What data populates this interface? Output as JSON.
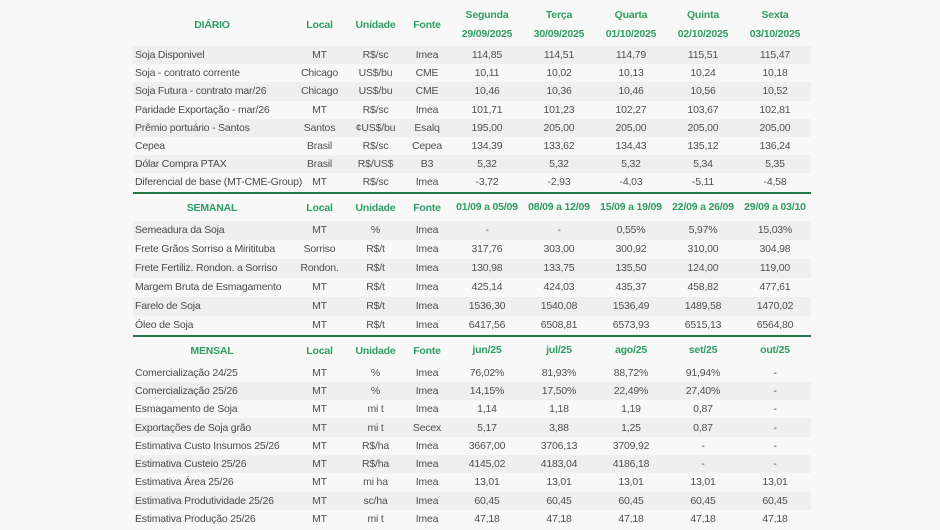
{
  "colors": {
    "header_green": "#2e9e63",
    "divider_green": "#26774a",
    "stripe_gray": "#efefef",
    "background": "#f8f8f8",
    "body_text": "#4f4f4f"
  },
  "sections": [
    {
      "title": "DIÁRIO",
      "meta": [
        "Local",
        "Unidade",
        "Fonte"
      ],
      "stripe_offset": 0,
      "col_headers": [
        [
          "Segunda",
          "29/09/2025"
        ],
        [
          "Terça",
          "30/09/2025"
        ],
        [
          "Quarta",
          "01/10/2025"
        ],
        [
          "Quinta",
          "02/10/2025"
        ],
        [
          "Sexta",
          "03/10/2025"
        ]
      ],
      "rows": [
        {
          "label": "Soja Disponivel",
          "local": "MT",
          "unidade": "R$/sc",
          "fonte": "Imea",
          "values": [
            "114,85",
            "114,51",
            "114,79",
            "115,51",
            "115,47"
          ]
        },
        {
          "label": "Soja - contrato corrente",
          "local": "Chicago",
          "unidade": "US$/bu",
          "fonte": "CME",
          "values": [
            "10,11",
            "10,02",
            "10,13",
            "10,24",
            "10,18"
          ]
        },
        {
          "label": "Soja Futura - contrato mar/26",
          "local": "Chicago",
          "unidade": "US$/bu",
          "fonte": "CME",
          "values": [
            "10,46",
            "10,36",
            "10,46",
            "10,56",
            "10,52"
          ]
        },
        {
          "label": "Paridade Exportação - mar/26",
          "local": "MT",
          "unidade": "R$/sc",
          "fonte": "Imea",
          "values": [
            "101,71",
            "101,23",
            "102,27",
            "103,67",
            "102,81"
          ]
        },
        {
          "label": "Prêmio portuário - Santos",
          "local": "Santos",
          "unidade": "¢US$/bu",
          "fonte": "Esalq",
          "values": [
            "195,00",
            "205,00",
            "205,00",
            "205,00",
            "205,00"
          ]
        },
        {
          "label": "Cepea",
          "local": "Brasil",
          "unidade": "R$/sc",
          "fonte": "Cepea",
          "values": [
            "134,39",
            "133,62",
            "134,43",
            "135,12",
            "136,24"
          ]
        },
        {
          "label": "Dólar Compra PTAX",
          "local": "Brasil",
          "unidade": "R$/US$",
          "fonte": "B3",
          "values": [
            "5,32",
            "5,32",
            "5,32",
            "5,34",
            "5,35"
          ]
        },
        {
          "label": "Diferencial de base (MT-CME-Group)",
          "local": "MT",
          "unidade": "R$/sc",
          "fonte": "Imea",
          "values": [
            "-3,72",
            "-2,93",
            "-4,03",
            "-5,11",
            "-4,58"
          ]
        }
      ]
    },
    {
      "title": "SEMANAL",
      "meta": [
        "Local",
        "Unidade",
        "Fonte"
      ],
      "stripe_offset": 0,
      "col_headers": [
        [
          "01/09 a 05/09"
        ],
        [
          "08/09 a 12/09"
        ],
        [
          "15/09 a 19/09"
        ],
        [
          "22/09 a 26/09"
        ],
        [
          "29/09 a 03/10"
        ]
      ],
      "rows": [
        {
          "label": "Semeadura da Soja",
          "local": "MT",
          "unidade": "%",
          "fonte": "Imea",
          "values": [
            "-",
            "-",
            "0,55%",
            "5,97%",
            "15,03%"
          ]
        },
        {
          "label": "Frete Grãos Sorriso a Miritituba",
          "local": "Sorriso",
          "unidade": "R$/t",
          "fonte": "Imea",
          "values": [
            "317,76",
            "303,00",
            "300,92",
            "310,00",
            "304,98"
          ]
        },
        {
          "label": "Frete Fertiliz. Rondon. a Sorriso",
          "local": "Rondon.",
          "unidade": "R$/t",
          "fonte": "Imea",
          "values": [
            "130,98",
            "133,75",
            "135,50",
            "124,00",
            "119,00"
          ]
        },
        {
          "label": "Margem Bruta de Esmagamento",
          "local": "MT",
          "unidade": "R$/t",
          "fonte": "Imea",
          "values": [
            "425,14",
            "424,03",
            "435,37",
            "458,82",
            "477,61"
          ]
        },
        {
          "label": "Farelo de Soja",
          "local": "MT",
          "unidade": "R$/t",
          "fonte": "Imea",
          "values": [
            "1536,30",
            "1540,08",
            "1536,49",
            "1489,58",
            "1470,02"
          ]
        },
        {
          "label": "Óleo de Soja",
          "local": "MT",
          "unidade": "R$/t",
          "fonte": "Imea",
          "values": [
            "6417,56",
            "6508,81",
            "6573,93",
            "6515,13",
            "6564,80"
          ]
        }
      ]
    },
    {
      "title": "MENSAL",
      "meta": [
        "Local",
        "Unidade",
        "Fonte"
      ],
      "stripe_offset": 1,
      "col_headers": [
        [
          "jun/25"
        ],
        [
          "jul/25"
        ],
        [
          "ago/25"
        ],
        [
          "set/25"
        ],
        [
          "out/25"
        ]
      ],
      "rows": [
        {
          "label": "Comercialização 24/25",
          "local": "MT",
          "unidade": "%",
          "fonte": "Imea",
          "values": [
            "76,02%",
            "81,93%",
            "88,72%",
            "91,94%",
            "-"
          ]
        },
        {
          "label": "Comercialização 25/26",
          "local": "MT",
          "unidade": "%",
          "fonte": "Imea",
          "values": [
            "14,15%",
            "17,50%",
            "22,49%",
            "27,40%",
            "-"
          ]
        },
        {
          "label": "Esmagamento de Soja",
          "local": "MT",
          "unidade": "mi t",
          "fonte": "Imea",
          "values": [
            "1,14",
            "1,18",
            "1,19",
            "0,87",
            "-"
          ]
        },
        {
          "label": "Exportações de Soja grão",
          "local": "MT",
          "unidade": "mi t",
          "fonte": "Secex",
          "values": [
            "5,17",
            "3,88",
            "1,25",
            "0,87",
            "-"
          ]
        },
        {
          "label": "Estimativa Custo Insumos 25/26",
          "local": "MT",
          "unidade": "R$/ha",
          "fonte": "Imea",
          "values": [
            "3667,00",
            "3706,13",
            "3709,92",
            "-",
            "-"
          ]
        },
        {
          "label": "Estimativa Custeio 25/26",
          "local": "MT",
          "unidade": "R$/ha",
          "fonte": "Imea",
          "values": [
            "4145,02",
            "4183,04",
            "4186,18",
            "-",
            "-"
          ]
        },
        {
          "label": "Estimativa Área 25/26",
          "local": "MT",
          "unidade": "mi ha",
          "fonte": "Imea",
          "values": [
            "13,01",
            "13,01",
            "13,01",
            "13,01",
            "13,01"
          ]
        },
        {
          "label": "Estimativa Produtividade 25/26",
          "local": "MT",
          "unidade": "sc/ha",
          "fonte": "Imea",
          "values": [
            "60,45",
            "60,45",
            "60,45",
            "60,45",
            "60,45"
          ]
        },
        {
          "label": "Estimativa Produção 25/26",
          "local": "MT",
          "unidade": "mi t",
          "fonte": "Imea",
          "values": [
            "47,18",
            "47,18",
            "47,18",
            "47,18",
            "47,18"
          ]
        }
      ]
    }
  ]
}
